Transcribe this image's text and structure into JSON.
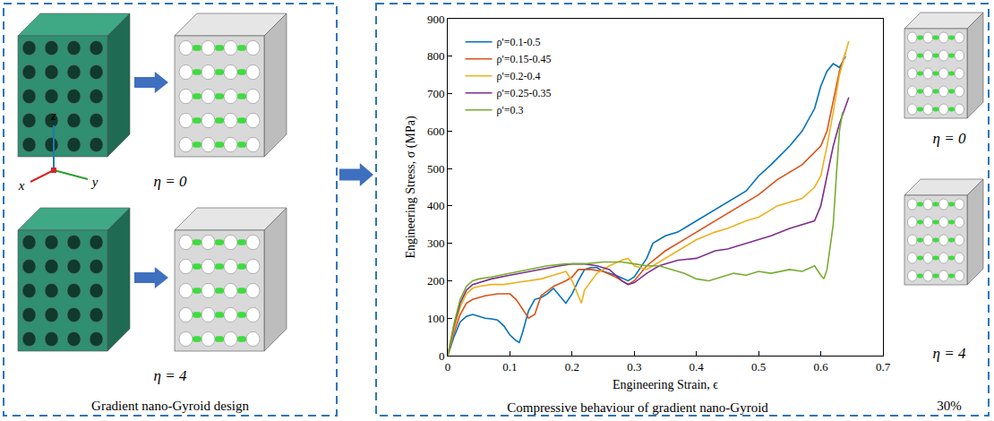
{
  "chart_data": {
    "type": "line",
    "x_label": "Engineering Strain, ϵ",
    "y_label": "Engineering Stress, σ (MPa)",
    "xlim": [
      0,
      0.7
    ],
    "xticks": [
      0,
      0.1,
      0.2,
      0.3,
      0.4,
      0.5,
      0.6,
      0.7
    ],
    "ylim": [
      0,
      900
    ],
    "yticks": [
      0,
      100,
      200,
      300,
      400,
      500,
      600,
      700,
      800,
      900
    ],
    "grid": false,
    "legend": "upper left",
    "series": [
      {
        "name": "ρ'=0.1-0.5",
        "color": "#0072BD",
        "x": [
          0,
          0.01,
          0.02,
          0.03,
          0.04,
          0.05,
          0.06,
          0.07,
          0.08,
          0.09,
          0.1,
          0.11,
          0.115,
          0.12,
          0.13,
          0.14,
          0.15,
          0.16,
          0.17,
          0.18,
          0.19,
          0.2,
          0.21,
          0.22,
          0.23,
          0.24,
          0.25,
          0.27,
          0.29,
          0.3,
          0.32,
          0.33,
          0.35,
          0.37,
          0.4,
          0.42,
          0.45,
          0.48,
          0.5,
          0.52,
          0.55,
          0.57,
          0.59,
          0.6,
          0.61,
          0.62,
          0.63,
          0.64
        ],
        "values": [
          0,
          50,
          90,
          105,
          110,
          105,
          100,
          98,
          95,
          80,
          55,
          40,
          35,
          60,
          120,
          150,
          155,
          165,
          180,
          160,
          140,
          165,
          200,
          230,
          235,
          235,
          225,
          215,
          200,
          210,
          260,
          300,
          320,
          330,
          360,
          380,
          410,
          440,
          480,
          510,
          560,
          600,
          660,
          720,
          760,
          780,
          770,
          800
        ]
      },
      {
        "name": "ρ'=0.15-0.45",
        "color": "#D95319",
        "x": [
          0,
          0.01,
          0.02,
          0.03,
          0.04,
          0.05,
          0.06,
          0.08,
          0.1,
          0.11,
          0.12,
          0.13,
          0.14,
          0.15,
          0.17,
          0.19,
          0.2,
          0.21,
          0.23,
          0.25,
          0.27,
          0.29,
          0.3,
          0.32,
          0.35,
          0.38,
          0.4,
          0.43,
          0.45,
          0.48,
          0.5,
          0.53,
          0.55,
          0.57,
          0.6,
          0.61,
          0.62,
          0.63,
          0.64
        ],
        "values": [
          0,
          60,
          110,
          140,
          150,
          155,
          160,
          165,
          165,
          150,
          125,
          100,
          110,
          160,
          185,
          200,
          210,
          230,
          230,
          225,
          210,
          190,
          200,
          240,
          280,
          310,
          330,
          360,
          380,
          410,
          430,
          470,
          490,
          510,
          560,
          600,
          680,
          760,
          810
        ]
      },
      {
        "name": "ρ'=0.2-0.4",
        "color": "#EDB120",
        "x": [
          0,
          0.01,
          0.02,
          0.03,
          0.04,
          0.05,
          0.07,
          0.09,
          0.11,
          0.13,
          0.15,
          0.17,
          0.19,
          0.2,
          0.21,
          0.215,
          0.22,
          0.24,
          0.26,
          0.28,
          0.29,
          0.3,
          0.32,
          0.35,
          0.38,
          0.4,
          0.43,
          0.45,
          0.48,
          0.5,
          0.53,
          0.55,
          0.57,
          0.59,
          0.6,
          0.61,
          0.62,
          0.63,
          0.645
        ],
        "values": [
          0,
          70,
          130,
          165,
          180,
          185,
          190,
          190,
          195,
          200,
          205,
          215,
          225,
          200,
          160,
          140,
          175,
          220,
          240,
          255,
          260,
          240,
          230,
          260,
          290,
          310,
          330,
          340,
          360,
          370,
          400,
          410,
          420,
          450,
          480,
          560,
          650,
          750,
          840
        ]
      },
      {
        "name": "ρ'=0.25-0.35",
        "color": "#7E2F8E",
        "x": [
          0,
          0.01,
          0.02,
          0.03,
          0.04,
          0.05,
          0.07,
          0.1,
          0.13,
          0.15,
          0.18,
          0.2,
          0.22,
          0.24,
          0.26,
          0.28,
          0.29,
          0.3,
          0.32,
          0.34,
          0.37,
          0.4,
          0.43,
          0.45,
          0.48,
          0.5,
          0.52,
          0.55,
          0.57,
          0.59,
          0.6,
          0.61,
          0.62,
          0.63,
          0.645
        ],
        "values": [
          0,
          80,
          140,
          175,
          190,
          195,
          205,
          215,
          225,
          230,
          240,
          245,
          245,
          240,
          230,
          200,
          190,
          195,
          220,
          240,
          255,
          260,
          280,
          285,
          300,
          310,
          320,
          340,
          350,
          360,
          400,
          480,
          560,
          620,
          690
        ]
      },
      {
        "name": "ρ'=0.3",
        "color": "#77AC30",
        "x": [
          0,
          0.01,
          0.02,
          0.03,
          0.04,
          0.05,
          0.07,
          0.1,
          0.13,
          0.16,
          0.19,
          0.22,
          0.25,
          0.28,
          0.3,
          0.32,
          0.34,
          0.36,
          0.38,
          0.4,
          0.42,
          0.44,
          0.46,
          0.48,
          0.5,
          0.52,
          0.55,
          0.57,
          0.59,
          0.6,
          0.605,
          0.61,
          0.62,
          0.625,
          0.63,
          0.635
        ],
        "values": [
          0,
          85,
          150,
          185,
          200,
          205,
          210,
          220,
          230,
          240,
          245,
          245,
          250,
          250,
          245,
          240,
          240,
          230,
          220,
          205,
          200,
          210,
          220,
          215,
          225,
          220,
          230,
          225,
          240,
          215,
          205,
          230,
          350,
          480,
          600,
          650
        ]
      }
    ]
  },
  "figure": {
    "left_panel": {
      "caption": "Gradient nano-Gyroid design",
      "labels": [
        "η = 0",
        "η = 4"
      ],
      "axes": [
        "x",
        "y",
        "z"
      ]
    },
    "center_panel": {
      "caption": "Compressive behaviour of gradient nano-Gyroid"
    },
    "right_panel": {
      "labels": [
        "η = 0",
        "η = 4"
      ],
      "caption": "30%"
    }
  }
}
